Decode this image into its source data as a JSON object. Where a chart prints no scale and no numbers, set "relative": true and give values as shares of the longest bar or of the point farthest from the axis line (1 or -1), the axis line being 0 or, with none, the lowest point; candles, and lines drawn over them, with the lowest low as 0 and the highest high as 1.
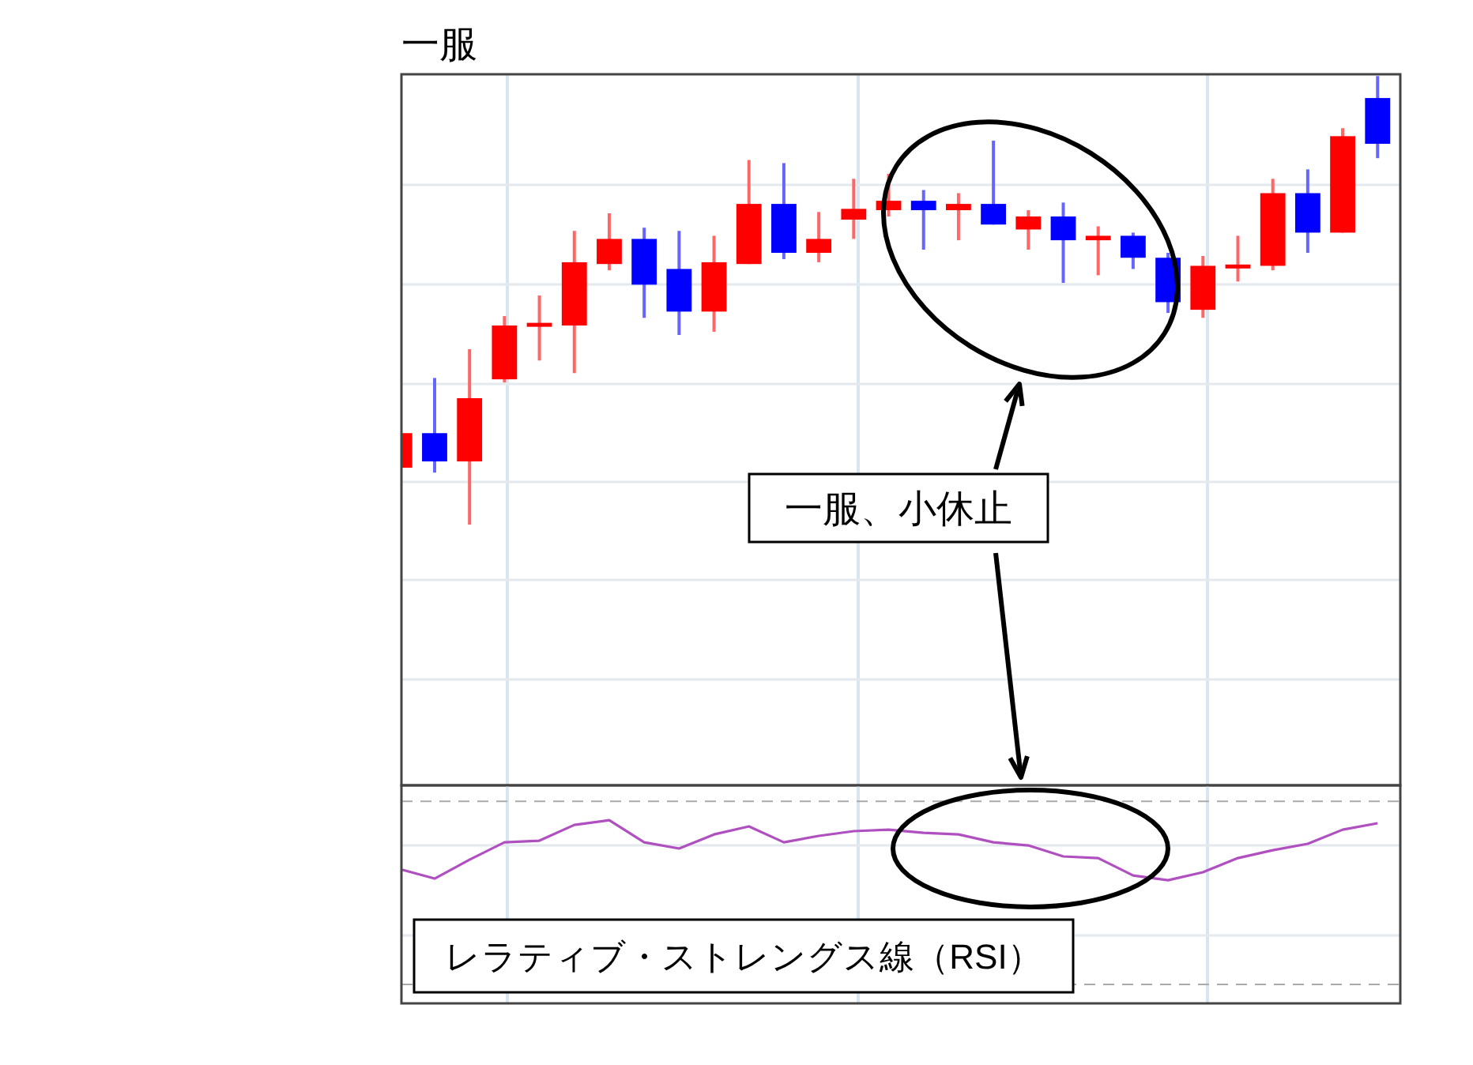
{
  "chart_data": [
    {
      "type": "candlestick",
      "title": "一服",
      "relative": true,
      "grid": true,
      "categories": [
        null,
        null,
        null,
        null,
        null,
        null,
        null,
        null,
        null,
        null,
        null,
        null,
        null,
        null,
        null,
        null,
        null,
        null,
        null,
        null,
        null,
        null,
        null,
        null,
        null,
        null,
        null,
        null,
        null
      ],
      "ohlc": [
        [
          0.127,
          0.204,
          0.127,
          0.204
        ],
        [
          0.204,
          0.327,
          0.116,
          0.141
        ],
        [
          0.141,
          0.391,
          0,
          0.282
        ],
        [
          0.324,
          0.465,
          0.317,
          0.444
        ],
        [
          0.444,
          0.511,
          0.366,
          0.447
        ],
        [
          0.444,
          0.655,
          0.338,
          0.585
        ],
        [
          0.581,
          0.694,
          0.567,
          0.637
        ],
        [
          0.637,
          0.662,
          0.461,
          0.535
        ],
        [
          0.57,
          0.655,
          0.423,
          0.475
        ],
        [
          0.475,
          0.644,
          0.43,
          0.585
        ],
        [
          0.581,
          0.813,
          0.581,
          0.715
        ],
        [
          0.715,
          0.806,
          0.592,
          0.606
        ],
        [
          0.606,
          0.697,
          0.585,
          0.637
        ],
        [
          0.68,
          0.771,
          0.637,
          0.704
        ],
        [
          0.701,
          0.782,
          0.687,
          0.722
        ],
        [
          0.722,
          0.746,
          0.613,
          0.701
        ],
        [
          0.701,
          0.739,
          0.634,
          0.715
        ],
        [
          0.715,
          0.856,
          0.669,
          0.669
        ],
        [
          0.658,
          0.701,
          0.613,
          0.687
        ],
        [
          0.687,
          0.718,
          0.539,
          0.634
        ],
        [
          0.634,
          0.665,
          0.556,
          0.644
        ],
        [
          0.644,
          0.651,
          0.57,
          0.595
        ],
        [
          0.595,
          0.606,
          0.472,
          0.496
        ],
        [
          0.479,
          0.599,
          0.461,
          0.577
        ],
        [
          0.574,
          0.644,
          0.542,
          0.577
        ],
        [
          0.577,
          0.771,
          0.567,
          0.739
        ],
        [
          0.739,
          0.792,
          0.606,
          0.651
        ],
        [
          0.651,
          0.884,
          0.651,
          0.866
        ],
        [
          0.951,
          1,
          0.817,
          0.849
        ]
      ],
      "colors": [
        "#ff0000",
        "#0000ff",
        "#ff0000",
        "#ff0000",
        "#ff0000",
        "#ff0000",
        "#ff0000",
        "#0000ff",
        "#0000ff",
        "#ff0000",
        "#ff0000",
        "#0000ff",
        "#ff0000",
        "#ff0000",
        "#ff0000",
        "#0000ff",
        "#ff0000",
        "#0000ff",
        "#ff0000",
        "#0000ff",
        "#ff0000",
        "#0000ff",
        "#0000ff",
        "#ff0000",
        "#ff0000",
        "#ff0000",
        "#0000ff",
        "#ff0000",
        "#0000ff"
      ],
      "annotations": [
        "一服、小休止"
      ]
    },
    {
      "type": "line",
      "relative": true,
      "grid": "x",
      "color": "#b050c0",
      "ref_lines": [
        {
          "axis": "y",
          "value": 1.103,
          "color": "#aaaaaa",
          "line_style": "dashed"
        },
        {
          "axis": "y",
          "value": 0.862,
          "color": "#e4e9ee",
          "line_style": "solid"
        },
        {
          "axis": "y",
          "value": 0.371,
          "color": "#e4e9ee",
          "line_style": "solid"
        },
        {
          "axis": "y",
          "value": 0.103,
          "color": "#aaaaaa",
          "line_style": "dashed"
        }
      ],
      "categories": [
        null,
        null,
        null,
        null,
        null,
        null,
        null,
        null,
        null,
        null,
        null,
        null,
        null,
        null,
        null,
        null,
        null,
        null,
        null,
        null,
        null,
        null,
        null,
        null,
        null,
        null,
        null,
        null,
        null
      ],
      "values": [
        0.733,
        0.681,
        0.784,
        0.879,
        0.888,
        0.974,
        1,
        0.879,
        0.845,
        0.922,
        0.966,
        0.879,
        0.914,
        0.94,
        0.948,
        0.931,
        0.922,
        0.879,
        0.862,
        0.802,
        0.793,
        0.698,
        0.672,
        0.716,
        0.793,
        0.836,
        0.871,
        0.948,
        0.983
      ],
      "annotations": [
        "レラティブ・ストレングス線（RSI）"
      ]
    }
  ]
}
